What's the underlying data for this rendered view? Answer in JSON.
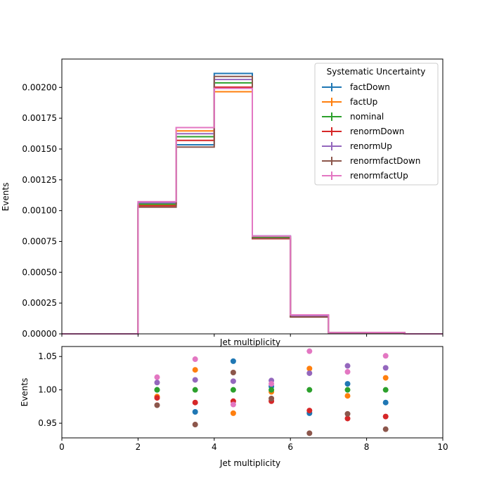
{
  "chart_data": [
    {
      "type": "histogram",
      "xlabel": "Jet multiplicity",
      "ylabel": "Events",
      "bin_edges": [
        0,
        1,
        2,
        3,
        4,
        5,
        6,
        7,
        8,
        9,
        10
      ],
      "xlim": [
        0,
        10
      ],
      "ylim": [
        0,
        0.00223
      ],
      "yticks": [
        "0.00000",
        "0.00025",
        "0.00050",
        "0.00075",
        "0.00100",
        "0.00125",
        "0.00150",
        "0.00175",
        "0.00200"
      ],
      "legend": {
        "title": "Systematic Uncertainty",
        "placement": "top-right"
      },
      "series": [
        {
          "name": "factDown",
          "color": "#1f77b4",
          "values": [
            0,
            0,
            0.001052,
            0.001534,
            0.002113,
            0.00079,
            0.000141,
            1.01e-05,
            1.02e-05,
            0
          ]
        },
        {
          "name": "factUp",
          "color": "#ff7f0e",
          "values": [
            0,
            0,
            0.001042,
            0.001647,
            0.001965,
            0.000776,
            0.000151,
            9.9e-06,
            1.06e-05,
            0
          ]
        },
        {
          "name": "nominal",
          "color": "#2ca02c",
          "values": [
            0,
            0,
            0.001052,
            0.0016,
            0.002037,
            0.000786,
            0.000145,
            1e-05,
            1.04e-05,
            0
          ]
        },
        {
          "name": "renormDown",
          "color": "#d62728",
          "values": [
            0,
            0,
            0.001039,
            0.00157,
            0.002002,
            0.000772,
            0.000141,
            9.6e-06,
            1e-05,
            0
          ]
        },
        {
          "name": "renormUp",
          "color": "#9467bd",
          "values": [
            0,
            0,
            0.001064,
            0.001624,
            0.002064,
            0.000795,
            0.000148,
            1.03e-05,
            1.07e-05,
            0
          ]
        },
        {
          "name": "renormfactDown",
          "color": "#8c564b",
          "values": [
            0,
            0,
            0.001028,
            0.001516,
            0.002089,
            0.000775,
            0.000136,
            9.6e-06,
            9.8e-06,
            0
          ]
        },
        {
          "name": "renormfactUp",
          "color": "#e377c2",
          "values": [
            0,
            0,
            0.001073,
            0.001674,
            0.001992,
            0.000793,
            0.000154,
            1.03e-05,
            1.09e-05,
            0
          ]
        }
      ]
    },
    {
      "type": "scatter",
      "xlabel": "Jet multiplicity",
      "ylabel": "Events",
      "xlim": [
        0,
        10
      ],
      "ylim": [
        0.928,
        1.065
      ],
      "xticks": [
        "0",
        "2",
        "4",
        "6",
        "8",
        "10"
      ],
      "yticks": [
        "0.95",
        "1.00",
        "1.05"
      ],
      "x": [
        2.5,
        3.5,
        4.5,
        5.5,
        6.5,
        7.5,
        8.5
      ],
      "series": [
        {
          "name": "factDown",
          "color": "#1f77b4",
          "values": [
            1.0,
            0.967,
            1.043,
            1.005,
            0.965,
            1.009,
            0.981
          ]
        },
        {
          "name": "factUp",
          "color": "#ff7f0e",
          "values": [
            0.99,
            1.03,
            0.965,
            0.997,
            1.032,
            0.991,
            1.018
          ]
        },
        {
          "name": "nominal",
          "color": "#2ca02c",
          "values": [
            1.0,
            1.0,
            1.0,
            1.0,
            1.0,
            1.0,
            1.0
          ]
        },
        {
          "name": "renormDown",
          "color": "#d62728",
          "values": [
            0.988,
            0.981,
            0.983,
            0.983,
            0.969,
            0.957,
            0.96
          ]
        },
        {
          "name": "renormUp",
          "color": "#9467bd",
          "values": [
            1.011,
            1.015,
            1.013,
            1.014,
            1.025,
            1.036,
            1.033
          ]
        },
        {
          "name": "renormfactDown",
          "color": "#8c564b",
          "values": [
            0.977,
            0.948,
            1.026,
            0.987,
            0.935,
            0.964,
            0.941
          ]
        },
        {
          "name": "renormfactUp",
          "color": "#e377c2",
          "values": [
            1.019,
            1.046,
            0.978,
            1.009,
            1.058,
            1.027,
            1.051
          ]
        }
      ]
    }
  ]
}
